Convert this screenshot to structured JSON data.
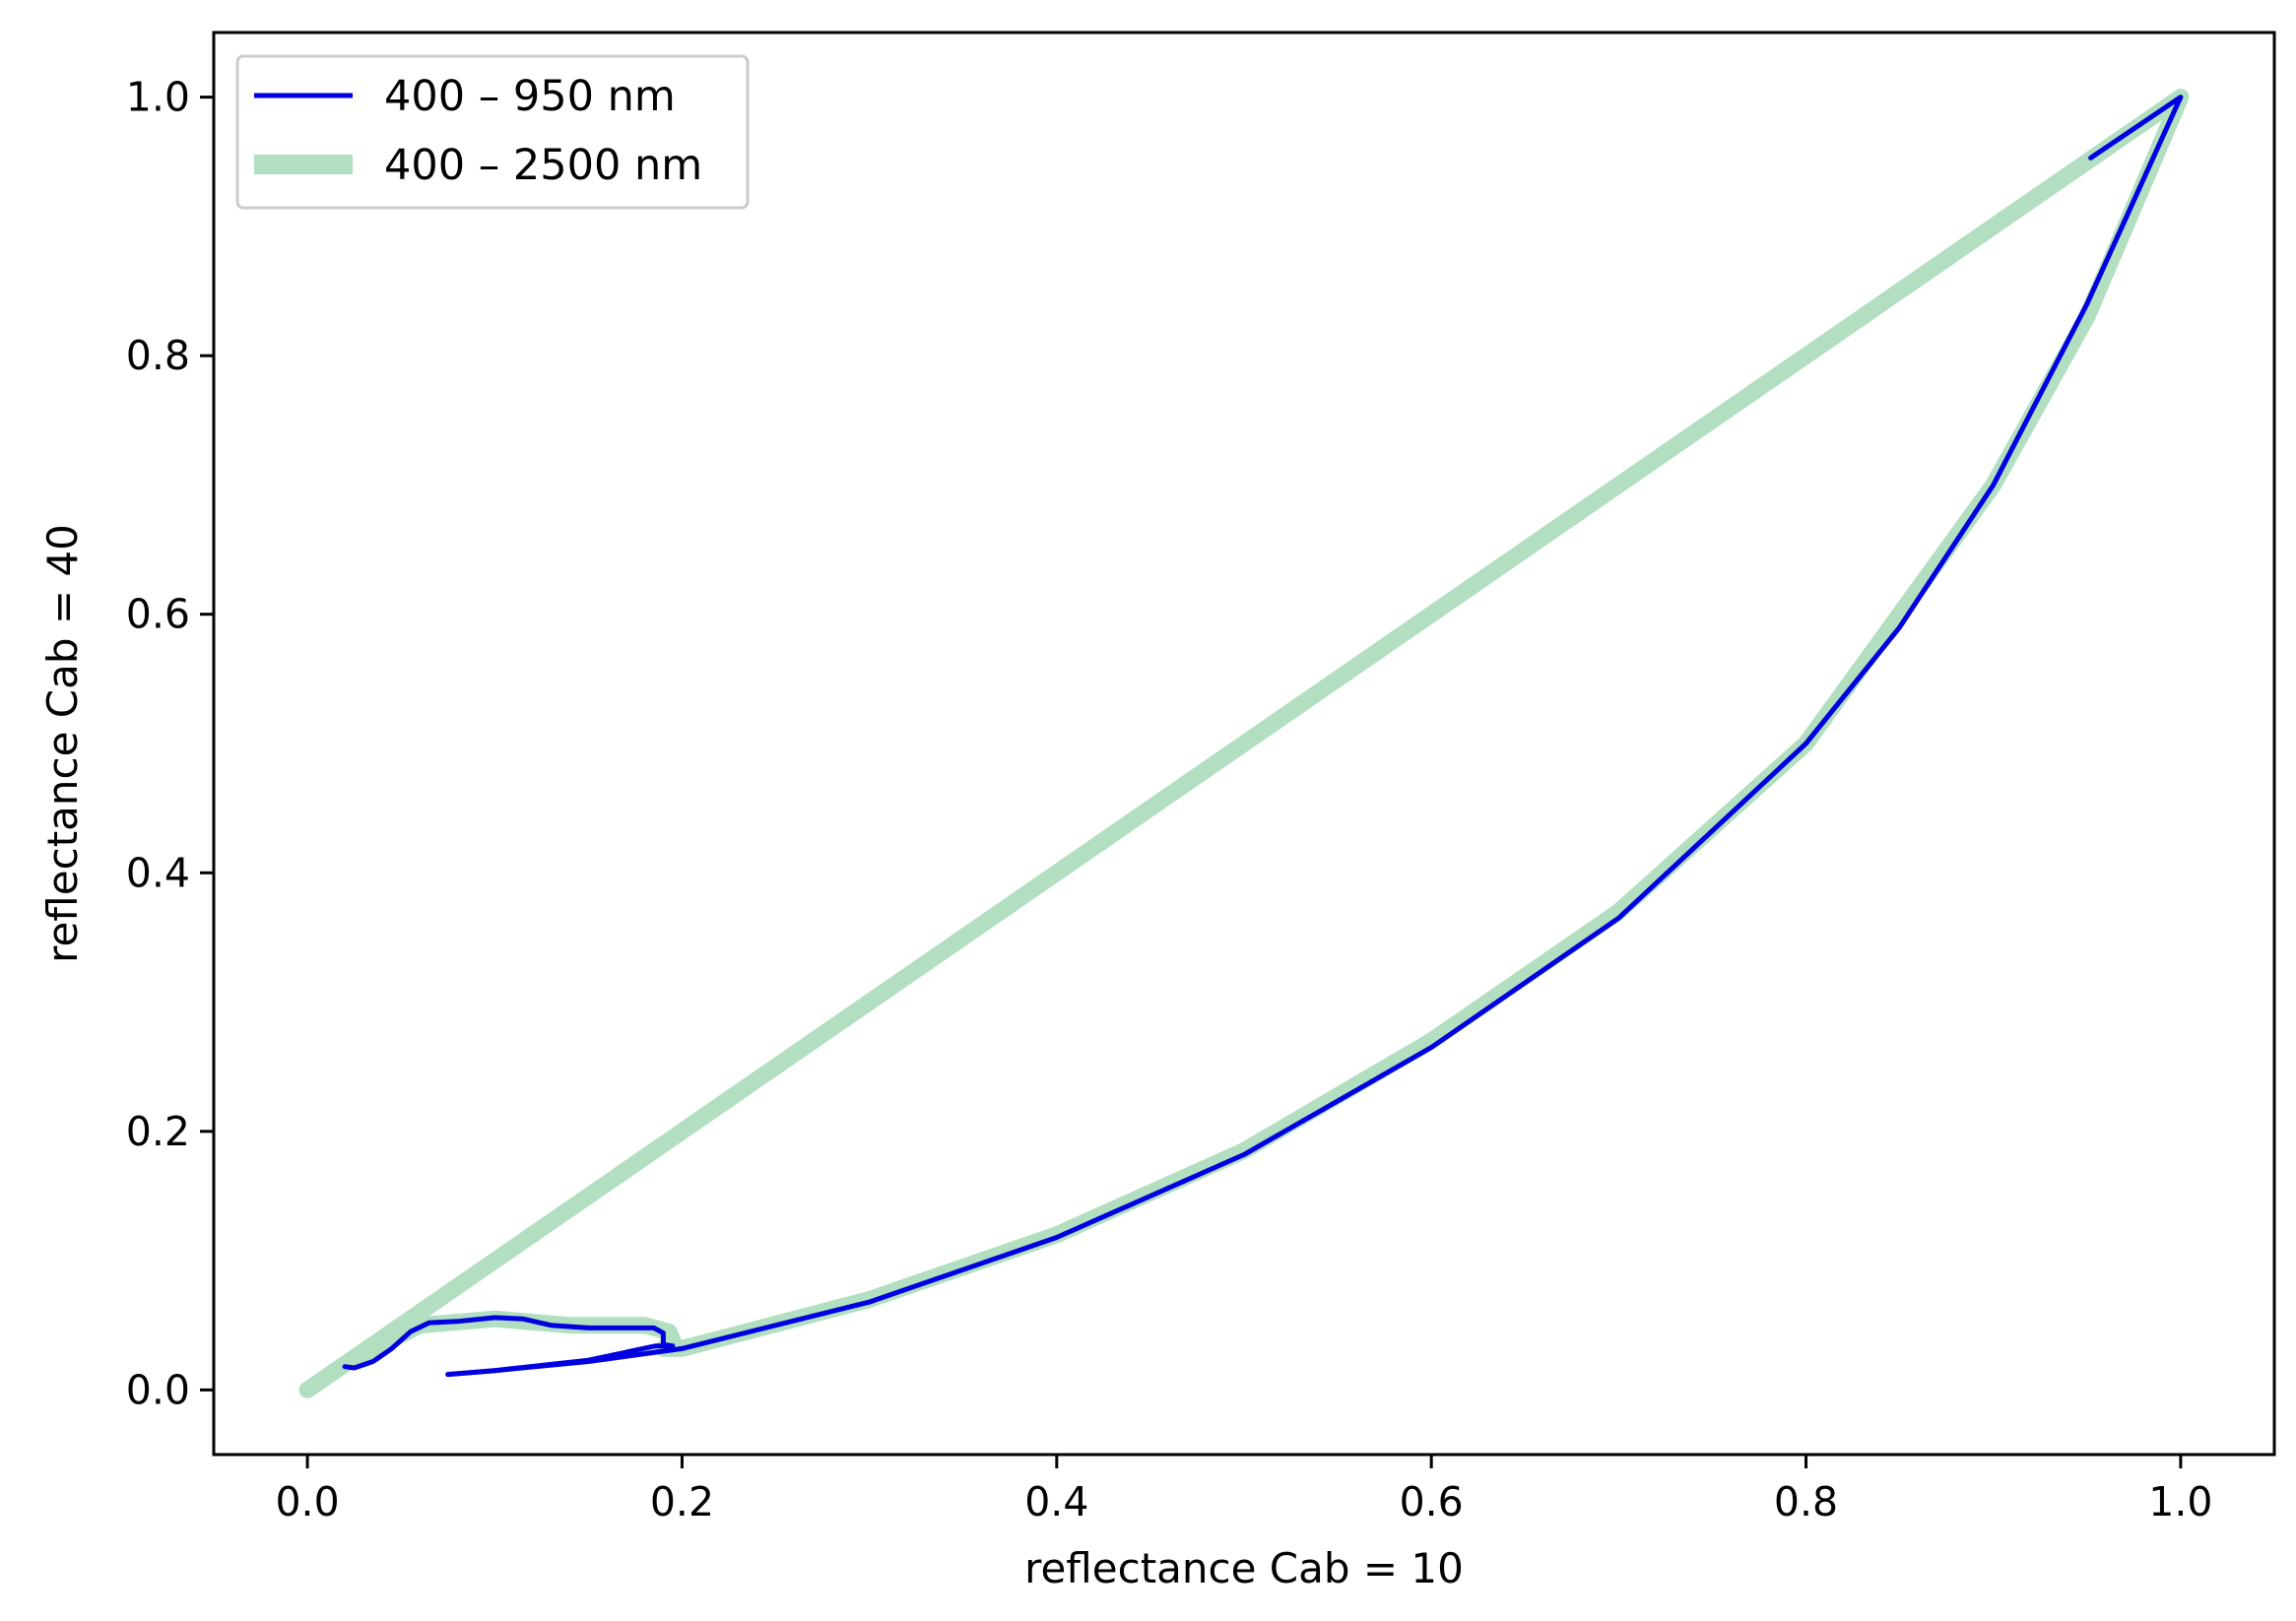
{
  "chart_data": {
    "type": "line",
    "xlabel": "reflectance Cab = 10",
    "ylabel": "reflectance Cab = 40",
    "xlim": [
      -0.05,
      1.05
    ],
    "ylim": [
      -0.05,
      1.05
    ],
    "xticks": [
      "0.0",
      "0.2",
      "0.4",
      "0.6",
      "0.8",
      "1.0"
    ],
    "yticks": [
      "0.0",
      "0.2",
      "0.4",
      "0.6",
      "0.8",
      "1.0"
    ],
    "grid": false,
    "legend_position": "top-left",
    "series": [
      {
        "name": "400 – 2500 nm",
        "color": "#b2dfc0",
        "style": "thick",
        "x": [
          0.0,
          0.02,
          0.06,
          0.1,
          0.14,
          0.18,
          0.193,
          0.196,
          0.19,
          0.2,
          0.3,
          0.4,
          0.5,
          0.6,
          0.7,
          0.8,
          0.9,
          0.95,
          1.0,
          0.95,
          0.8,
          0.6,
          0.4,
          0.2,
          0.0
        ],
        "y": [
          0.0,
          0.02,
          0.05,
          0.055,
          0.05,
          0.05,
          0.045,
          0.035,
          0.032,
          0.032,
          0.07,
          0.12,
          0.185,
          0.27,
          0.37,
          0.5,
          0.7,
          0.83,
          1.0,
          0.95,
          0.8,
          0.6,
          0.4,
          0.2,
          0.0
        ]
      },
      {
        "name": "400 – 950 nm",
        "color": "#0000e0",
        "style": "thin",
        "x": [
          0.02,
          0.025,
          0.035,
          0.045,
          0.055,
          0.065,
          0.08,
          0.1,
          0.115,
          0.13,
          0.15,
          0.17,
          0.185,
          0.19,
          0.19,
          0.195,
          0.186,
          0.15,
          0.1,
          0.075
        ],
        "y": [
          0.018,
          0.017,
          0.022,
          0.032,
          0.045,
          0.052,
          0.053,
          0.056,
          0.055,
          0.05,
          0.048,
          0.048,
          0.048,
          0.044,
          0.035,
          0.034,
          0.034,
          0.023,
          0.015,
          0.012
        ],
        "x2": [
          0.075,
          0.1,
          0.15,
          0.2,
          0.3,
          0.4,
          0.5,
          0.6,
          0.7,
          0.8,
          0.85,
          0.9,
          0.95,
          1.0,
          0.952
        ],
        "y2": [
          0.012,
          0.015,
          0.022,
          0.032,
          0.068,
          0.118,
          0.182,
          0.265,
          0.365,
          0.5,
          0.59,
          0.7,
          0.84,
          1.0,
          0.953
        ]
      }
    ]
  }
}
